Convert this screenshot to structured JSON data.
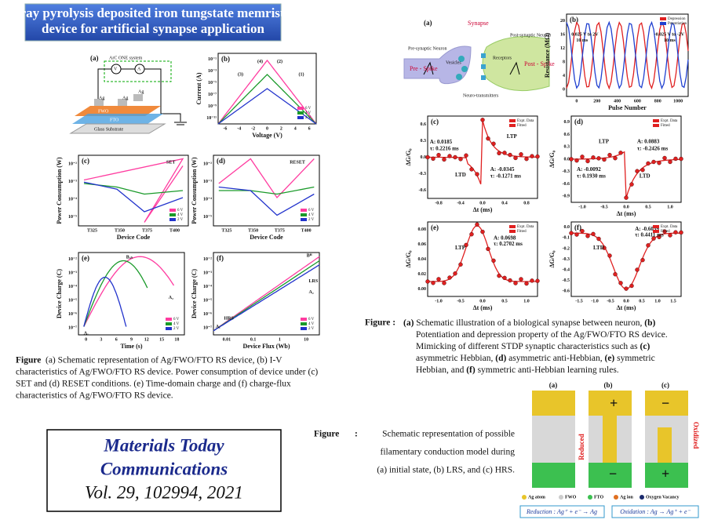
{
  "title": [
    "Spray pyrolysis deposited iron tungstate memristive",
    "device for artificial synapse application"
  ],
  "left_schematic": {
    "label": "(a)",
    "texts": [
      "ArC ONE system",
      "V",
      "A",
      "Ag",
      "Ag",
      "Ag",
      "FWO",
      "FTO",
      "Glass Substrate"
    ]
  },
  "left_plots": [
    {
      "label": "(b)",
      "xlabel": "Voltage (V)",
      "ylabel": "Current (A)",
      "xticks": [
        "-6",
        "-4",
        "-2",
        "0",
        "2",
        "4",
        "6"
      ],
      "yticks": [
        "10⁻¹",
        "10⁻³",
        "10⁻⁵",
        "10⁻⁷",
        "10⁻⁹",
        "10⁻¹¹"
      ],
      "legend": [
        "6 V",
        "4 V",
        "2 V"
      ],
      "notes": [
        "(1)",
        "(2)",
        "(3)",
        "(4)"
      ]
    },
    {
      "label": "(c)",
      "xlabel": "Device Code",
      "ylabel": "Power Consumption (W)",
      "xticks": [
        "T325",
        "T350",
        "T375",
        "T400"
      ],
      "yticks": [
        "10⁻²",
        "10⁻³",
        "10⁻⁴",
        "10⁻⁵"
      ],
      "legend": [
        "6 V",
        "4 V",
        "2 V"
      ],
      "notes": [
        "SET"
      ]
    },
    {
      "label": "(d)",
      "xlabel": "Device Code",
      "ylabel": "Power Consumption (W)",
      "xticks": [
        "T325",
        "T350",
        "T375",
        "T400"
      ],
      "yticks": [
        "10⁻²",
        "10⁻³",
        "10⁻⁴",
        "10⁻⁵"
      ],
      "legend": [
        "6 V",
        "4 V",
        "2 V"
      ],
      "notes": [
        "RESET"
      ]
    },
    {
      "label": "(e)",
      "xlabel": "Time (s)",
      "ylabel": "Device Charge (C)",
      "xticks": [
        "0",
        "3",
        "6",
        "9",
        "12",
        "15",
        "18"
      ],
      "yticks": [
        "10⁻²",
        "10⁻³",
        "10⁻⁴",
        "10⁻⁵",
        "10⁻⁶",
        "10⁻⁷"
      ],
      "legend": [
        "6 V",
        "4 V",
        "2 V"
      ],
      "notes": [
        "Bₒₙ",
        "A₂",
        "A₁"
      ]
    },
    {
      "label": "(f)",
      "xlabel": "Device Flux (Wb)",
      "ylabel": "Device Charge (C)",
      "xticks": [
        "0.01",
        "0.1",
        "1",
        "10"
      ],
      "yticks": [
        "10⁻²",
        "10⁻³",
        "10⁻⁴",
        "10⁻⁵",
        "10⁻⁶",
        "10⁻⁷"
      ],
      "legend": [
        "6 V",
        "4 V",
        "2 V"
      ],
      "notes": [
        "HRS",
        "LRS",
        "Bᴴ",
        "A₂",
        "A₁"
      ]
    }
  ],
  "left_caption": {
    "label": "Figure",
    "lines": [
      " (a) Schematic representation of Ag/FWO/FTO RS device, (b) I-V",
      "characteristics of Ag/FWO/FTO RS device. Power consumption of device under (c)",
      "SET and (d) RESET conditions. (e) Time-domain charge and (f) charge-flux",
      "characteristics of Ag/FWO/FTO RS device."
    ]
  },
  "journal": [
    "Materials Today",
    "Communications",
    "Vol. 29, 102994, 2021"
  ],
  "synapse": {
    "label": "(a)",
    "texts": [
      "Synapse",
      "Pre-synaptic Neuron",
      "Post-synaptic Neuron",
      "Pre - Spike",
      "Post - Spike",
      "Vesicles",
      "Receptors",
      "Neuro-transmitters"
    ]
  },
  "right_plots": [
    {
      "label": "(b)",
      "xlabel": "Pulse Number",
      "ylabel": "Resistance (MΩ)",
      "xticks": [
        "0",
        "200",
        "400",
        "600",
        "800",
        "1000"
      ],
      "yticks": [
        "20",
        "16",
        "12",
        "8",
        "4",
        "0"
      ],
      "legend": [
        "Depression",
        "Potentiation"
      ],
      "notes": [
        "0.025 V to 2V",
        "10 ms",
        "-0.025 V to -2V",
        "10 ms"
      ]
    },
    {
      "label": "(c)",
      "xlabel": "Δt (ms)",
      "ylabel": "ΔG/G₀",
      "xticks": [
        "-0.8",
        "-0.4",
        "0.0",
        "0.4",
        "0.8"
      ],
      "yticks": [
        "0.6",
        "0.3",
        "0.0",
        "-0.3",
        "-0.6"
      ],
      "legend": [
        "Expt. Data",
        "Fitted"
      ],
      "notes": [
        "LTP",
        "LTD",
        "A: 0.0185",
        "τ: 0.2216 ms",
        "A: -0.0345",
        "τ: -0.1271 ms"
      ]
    },
    {
      "label": "(d)",
      "xlabel": "Δt (ms)",
      "ylabel": "ΔG/G₀",
      "xticks": [
        "-1.0",
        "-0.5",
        "0.0",
        "0.5",
        "1.0"
      ],
      "yticks": [
        "0.9",
        "0.6",
        "0.3",
        "0.0",
        "-0.3",
        "-0.6",
        "-0.9"
      ],
      "legend": [
        "Expt. Data",
        "Fitted"
      ],
      "notes": [
        "LTP",
        "LTD",
        "A: 0.0883",
        "τ: -0.2426 ms",
        "A: -0.0092",
        "τ: 0.1930 ms"
      ]
    },
    {
      "label": "(e)",
      "xlabel": "Δt (ms)",
      "ylabel": "ΔG/G₀",
      "xticks": [
        "-1.0",
        "-0.5",
        "0.0",
        "0.5",
        "1.0"
      ],
      "yticks": [
        "0.08",
        "0.06",
        "0.04",
        "0.02",
        "0.00"
      ],
      "legend": [
        "Expt. Data",
        "Fitted"
      ],
      "notes": [
        "LTP",
        "A: 0.0698",
        "τ: 0.2702 ms"
      ]
    },
    {
      "label": "(f)",
      "xlabel": "Δt (ms)",
      "ylabel": "ΔG/G₀",
      "xticks": [
        "-1.5",
        "-1.0",
        "-0.5",
        "0.0",
        "0.5",
        "1.0",
        "1.5"
      ],
      "yticks": [
        "0.0",
        "-0.1",
        "-0.2",
        "-0.3",
        "-0.4",
        "-0.5",
        "-0.6"
      ],
      "legend": [
        "Expt. Data",
        "Fitted"
      ],
      "notes": [
        "LTD",
        "A: -0.6039",
        "τ: 0.4411 ms"
      ]
    }
  ],
  "right_caption": {
    "label": "Figure :",
    "lines": [
      [
        "(a)",
        " Schematic illustration of a biological synapse between neuron, ",
        "(b)"
      ],
      [
        "Potentiation and depression property of the Ag/FWO/FTO RS device."
      ],
      [
        "Mimicking of different STDP synaptic characteristics such as ",
        "(c)"
      ],
      [
        "asymmetric Hebbian, ",
        "(d)",
        " asymmetric anti-Hebbian, ",
        "(e)",
        " symmetric"
      ],
      [
        "Hebbian, and ",
        "(f)",
        " symmetric anti-Hebbian learning rules."
      ]
    ]
  },
  "filament_caption": {
    "label": "Figure",
    "sep": ":",
    "lines": [
      "Schematic representation of possible",
      "filamentary conduction model during",
      "(a) initial state, (b) LRS, and (c) HRS."
    ]
  },
  "filament": {
    "labels": [
      "(a)",
      "(b)",
      "(c)"
    ],
    "arrows": [
      "Reduced",
      "Oxidized"
    ],
    "legend": [
      "Ag atom",
      "FWO",
      "FTO",
      "Ag ion",
      "Oxygen Vacancy"
    ],
    "reactions": [
      "Reduction : Ag⁺ + e⁻ → Ag",
      "Oxidation : Ag → Ag⁺ + e⁻"
    ]
  }
}
